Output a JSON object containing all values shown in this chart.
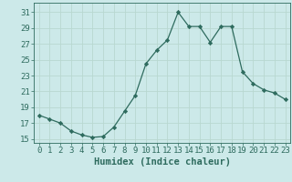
{
  "xlabel": "Humidex (Indice chaleur)",
  "x": [
    0,
    1,
    2,
    3,
    4,
    5,
    6,
    7,
    8,
    9,
    10,
    11,
    12,
    13,
    14,
    15,
    16,
    17,
    18,
    19,
    20,
    21,
    22,
    23
  ],
  "y": [
    18,
    17.5,
    17,
    16,
    15.5,
    15.2,
    15.3,
    16.5,
    18.5,
    20.5,
    24.5,
    26.2,
    27.5,
    31,
    29.2,
    29.2,
    27.2,
    29.2,
    29.2,
    23.5,
    22,
    21.2,
    20.8,
    20
  ],
  "line_color": "#2e6b5e",
  "marker": "D",
  "marker_size": 2.2,
  "bg_color": "#cce9e9",
  "grid_color": "#b8d8d0",
  "yticks": [
    15,
    17,
    19,
    21,
    23,
    25,
    27,
    29,
    31
  ],
  "ylim": [
    14.5,
    32.2
  ],
  "xlim": [
    -0.5,
    23.5
  ],
  "tick_color": "#2e6b5e",
  "label_color": "#2e6b5e",
  "xlabel_fontsize": 7.5,
  "tick_fontsize": 6.5
}
